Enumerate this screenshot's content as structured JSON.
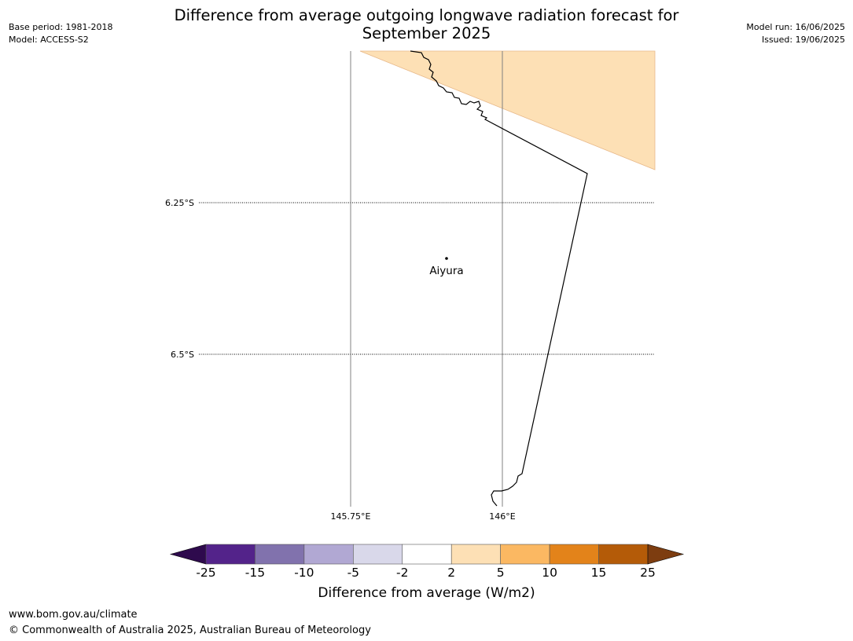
{
  "header": {
    "title_line1": "Difference from average outgoing longwave radiation forecast for",
    "title_line2": "September 2025",
    "base_period": "Base period: 1981-2018",
    "model": "Model: ACCESS-S2",
    "model_run": "Model run: 16/06/2025",
    "issued": "Issued: 19/06/2025"
  },
  "map": {
    "lat_labels": [
      "6.25°S",
      "6.5°S"
    ],
    "lon_labels": [
      "145.75°E",
      "146°E"
    ],
    "places": [
      {
        "name": "Aiyura"
      }
    ],
    "shaded_category": "2 to 5",
    "shaded_color": "#fde0b5",
    "coastline_color": "#000000",
    "gridline_color": "#808080"
  },
  "colorbar": {
    "label": "Difference from average (W/m2)",
    "ticks": [
      "-25",
      "-15",
      "-10",
      "-5",
      "-2",
      "2",
      "5",
      "10",
      "15",
      "25"
    ],
    "colors": [
      "#53238a",
      "#8172ad",
      "#b1a8d3",
      "#d9d8ea",
      "#ffffff",
      "#fde0b5",
      "#fbb862",
      "#e3831a",
      "#b45b08"
    ],
    "extend_min_color": "#2e0a4d",
    "extend_max_color": "#7d3d10"
  },
  "footer": {
    "url": "www.bom.gov.au/climate",
    "copyright": "© Commonwealth of Australia 2025, Australian Bureau of Meteorology"
  }
}
